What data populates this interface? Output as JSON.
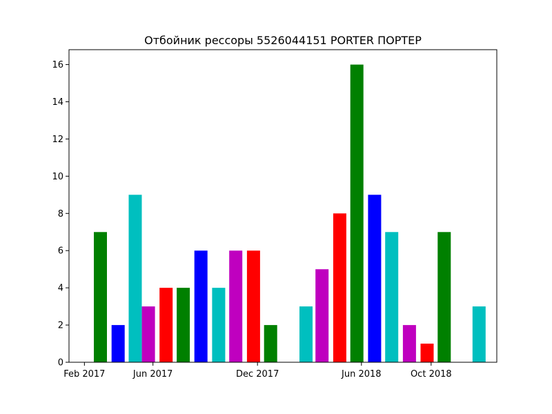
{
  "chart_data": {
    "type": "bar",
    "title": "Отбойник рессоры 5526044151 PORTER ПОРТЕР",
    "xlabel": "",
    "ylabel": "",
    "ylim": [
      0,
      16.8
    ],
    "xlim": [
      "2017-01-05",
      "2019-01-24"
    ],
    "yticks": [
      0,
      2,
      4,
      6,
      8,
      10,
      12,
      14,
      16
    ],
    "xticks": [
      {
        "date": "2017-02-01",
        "label": "Feb 2017"
      },
      {
        "date": "2017-06-01",
        "label": "Jun 2017"
      },
      {
        "date": "2017-12-01",
        "label": "Dec 2017"
      },
      {
        "date": "2018-06-01",
        "label": "Jun 2018"
      },
      {
        "date": "2018-10-01",
        "label": "Oct 2018"
      }
    ],
    "grid": false,
    "bars": [
      {
        "date": "2017-03-01",
        "value": 7,
        "color": "#008000"
      },
      {
        "date": "2017-04-01",
        "value": 2,
        "color": "#0000ff"
      },
      {
        "date": "2017-05-01",
        "value": 9,
        "color": "#00bfbf"
      },
      {
        "date": "2017-05-24",
        "value": 3,
        "color": "#bf00bf"
      },
      {
        "date": "2017-06-24",
        "value": 4,
        "color": "#ff0000"
      },
      {
        "date": "2017-07-24",
        "value": 4,
        "color": "#008000"
      },
      {
        "date": "2017-08-24",
        "value": 6,
        "color": "#0000ff"
      },
      {
        "date": "2017-09-24",
        "value": 4,
        "color": "#00bfbf"
      },
      {
        "date": "2017-10-24",
        "value": 6,
        "color": "#bf00bf"
      },
      {
        "date": "2017-11-24",
        "value": 6,
        "color": "#ff0000"
      },
      {
        "date": "2017-12-24",
        "value": 2,
        "color": "#008000"
      },
      {
        "date": "2018-02-24",
        "value": 3,
        "color": "#00bfbf"
      },
      {
        "date": "2018-03-24",
        "value": 5,
        "color": "#bf00bf"
      },
      {
        "date": "2018-04-24",
        "value": 8,
        "color": "#ff0000"
      },
      {
        "date": "2018-05-24",
        "value": 16,
        "color": "#008000"
      },
      {
        "date": "2018-06-24",
        "value": 9,
        "color": "#0000ff"
      },
      {
        "date": "2018-07-24",
        "value": 7,
        "color": "#00bfbf"
      },
      {
        "date": "2018-08-24",
        "value": 2,
        "color": "#bf00bf"
      },
      {
        "date": "2018-09-24",
        "value": 1,
        "color": "#ff0000"
      },
      {
        "date": "2018-10-24",
        "value": 7,
        "color": "#008000"
      },
      {
        "date": "2018-12-24",
        "value": 3,
        "color": "#00bfbf"
      }
    ]
  }
}
